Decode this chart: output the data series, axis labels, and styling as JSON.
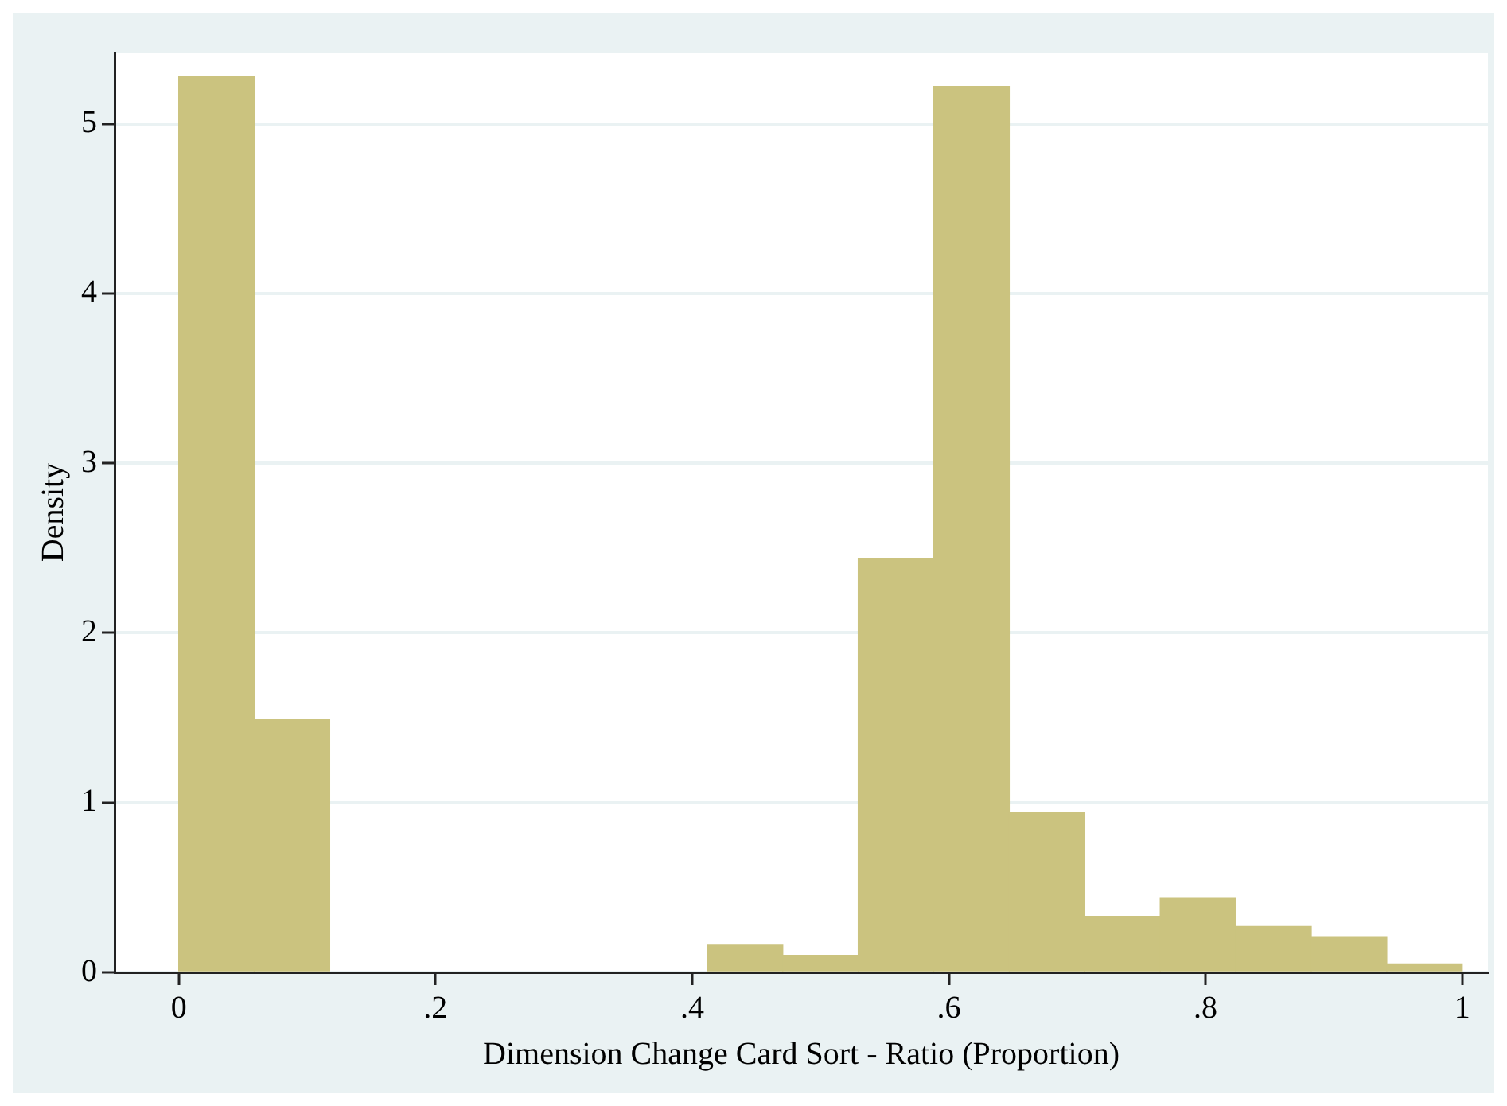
{
  "chart_data": {
    "type": "histogram",
    "xlabel": "Dimension Change Card Sort - Ratio (Proportion)",
    "ylabel": "Density",
    "bins": [
      0,
      0.0588,
      0.1176,
      0.1765,
      0.2353,
      0.2941,
      0.3529,
      0.4118,
      0.4706,
      0.5294,
      0.5882,
      0.6471,
      0.7059,
      0.7647,
      0.8235,
      0.8824,
      0.9412,
      1
    ],
    "values": [
      5.28,
      1.49,
      0,
      0,
      0,
      0,
      0,
      0.16,
      0.1,
      2.44,
      5.22,
      0.94,
      0.33,
      0.44,
      0.27,
      0.21,
      0.05
    ],
    "color": "#cbc37f",
    "xlim": [
      -0.05,
      1.02
    ],
    "ylim": [
      0,
      5.42
    ],
    "xticks": [
      0,
      {
        "value": 0.2,
        "label": ".2"
      },
      {
        "value": 0.4,
        "label": ".4"
      },
      {
        "value": 0.6,
        "label": ".6"
      },
      {
        "value": 0.8,
        "label": ".8"
      },
      1
    ],
    "yticks": [
      0,
      1,
      2,
      3,
      4,
      5
    ],
    "grid": "y"
  }
}
